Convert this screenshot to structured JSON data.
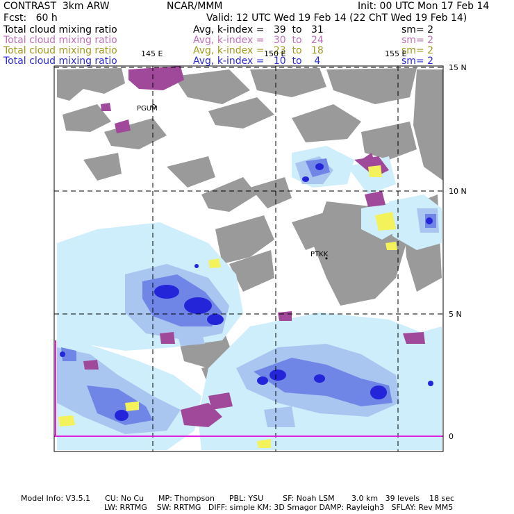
{
  "header": {
    "model": "CONTRAST  3km ARW",
    "org": "NCAR/MMM",
    "init": "Init: 00 UTC Mon 17 Feb 14",
    "fcst": "Fcst:   60 h",
    "valid": "Valid: 12 UTC Wed 19 Feb 14 (22 ChT Wed 19 Feb 14)"
  },
  "legend": [
    {
      "field": "Total cloud mixing ratio",
      "range": "Avg, k-index =   39  to   31",
      "smooth": "sm= 2",
      "color": "#000000"
    },
    {
      "field": "Total cloud mixing ratio",
      "range": "Avg, k-index =   30  to   24",
      "smooth": "sm= 2",
      "color": "#c070b8"
    },
    {
      "field": "Total cloud mixing ratio",
      "range": "Avg, k-index =   23  to   18",
      "smooth": "sm= 2",
      "color": "#a09a1c"
    },
    {
      "field": "Total cloud mixing ratio",
      "range": "Avg, k-index =   10  to    4",
      "smooth": "sm= 2",
      "color": "#2a2ad8"
    }
  ],
  "map": {
    "lon_labels": [
      "145 E",
      "150 E",
      "155 E"
    ],
    "lat_labels": [
      "15 N",
      "10 N",
      "5 N",
      "0"
    ],
    "stations": [
      "PGUM",
      "PTKK"
    ],
    "colors": {
      "land_gray": "#9a9a9a",
      "low_cloud": "#cdeefa",
      "light_blue": "#a9c6f0",
      "mid_blue": "#6f86e6",
      "deep_blue": "#2424d8",
      "magenta": "#a0489a",
      "light_magenta": "#c98ac4",
      "yellow": "#f4f25a",
      "frame_magenta": "#e020e0"
    }
  },
  "footer": {
    "line1": "Model Info: V3.5.1      CU: No Cu      MP: Thompson      PBL: YSU        SF: Noah LSM       3.0 km   39 levels    18 sec",
    "line2": "LW: RRTMG    SW: RRTMG   DIFF: simple KM: 3D Smagor DAMP: Rayleigh3   SFLAY: Rev MM5"
  }
}
